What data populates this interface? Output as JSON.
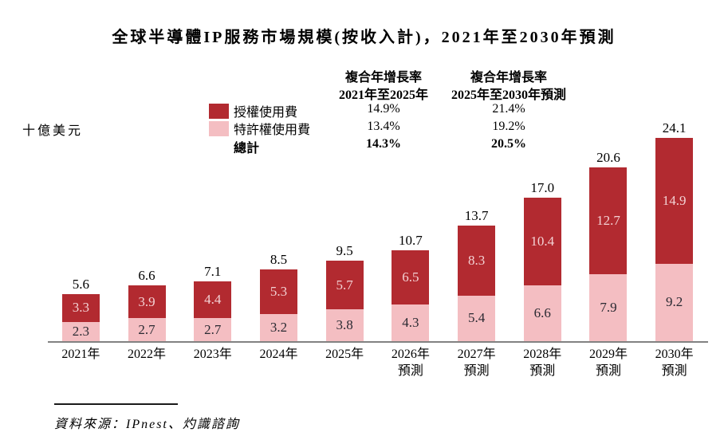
{
  "title": "全球半導體IP服務市場規模(按收入計)，2021年至2030年預測",
  "y_axis_unit": "十億美元",
  "legend": {
    "items": [
      {
        "key": "licensing",
        "label": "授權使用費"
      },
      {
        "key": "royalty",
        "label": "特許權使用費"
      }
    ],
    "total_label": "總計"
  },
  "cagr": {
    "columns": [
      {
        "header_line1": "複合年增長率",
        "header_line2": "2021年至2025年",
        "values": [
          "14.9%",
          "13.4%",
          "14.3%"
        ]
      },
      {
        "header_line1": "複合年增長率",
        "header_line2": "2025年至2030年預測",
        "values": [
          "21.4%",
          "19.2%",
          "20.5%"
        ]
      }
    ]
  },
  "colors": {
    "licensing": "#B22A30",
    "royalty": "#F4BEC2",
    "label_on_licensing": "#F3D2D4",
    "label_on_royalty": "#2A2A32",
    "axis": "#828282"
  },
  "chart_data": {
    "type": "bar",
    "stacked": true,
    "title": "全球半導體IP服務市場規模(按收入計)，2021年至2030年預測",
    "ylabel": "十億美元",
    "ylim": [
      0,
      25
    ],
    "grid": false,
    "legend_position": "top-left",
    "categories": [
      {
        "line1": "2021年",
        "line2": ""
      },
      {
        "line1": "2022年",
        "line2": ""
      },
      {
        "line1": "2023年",
        "line2": ""
      },
      {
        "line1": "2024年",
        "line2": ""
      },
      {
        "line1": "2025年",
        "line2": ""
      },
      {
        "line1": "2026年",
        "line2": "預測"
      },
      {
        "line1": "2027年",
        "line2": "預測"
      },
      {
        "line1": "2028年",
        "line2": "預測"
      },
      {
        "line1": "2029年",
        "line2": "預測"
      },
      {
        "line1": "2030年",
        "line2": "預測"
      }
    ],
    "series": [
      {
        "key": "licensing",
        "name": "授權使用費",
        "color": "#B22A30",
        "label_color": "#F3D2D4",
        "values": [
          3.3,
          3.9,
          4.4,
          5.3,
          5.7,
          6.5,
          8.3,
          10.4,
          12.7,
          14.9
        ]
      },
      {
        "key": "royalty",
        "name": "特許權使用費",
        "color": "#F4BEC2",
        "label_color": "#2A2A32",
        "values": [
          2.3,
          2.7,
          2.7,
          3.2,
          3.8,
          4.3,
          5.4,
          6.6,
          7.9,
          9.2
        ]
      }
    ],
    "totals": [
      "5.6",
      "6.6",
      "7.1",
      "8.5",
      "9.5",
      "10.7",
      "13.7",
      "17.0",
      "20.6",
      "24.1"
    ]
  },
  "source": "資料來源：IPnest、灼識諮詢"
}
